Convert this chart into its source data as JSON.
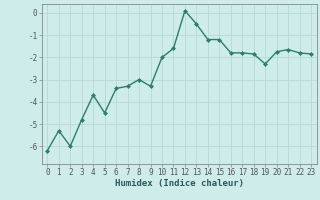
{
  "x": [
    0,
    1,
    2,
    3,
    4,
    5,
    6,
    7,
    8,
    9,
    10,
    11,
    12,
    13,
    14,
    15,
    16,
    17,
    18,
    19,
    20,
    21,
    22,
    23
  ],
  "y": [
    -6.2,
    -5.3,
    -6.0,
    -4.8,
    -3.7,
    -4.5,
    -3.4,
    -3.3,
    -3.0,
    -3.3,
    -2.0,
    -1.6,
    0.1,
    -0.5,
    -1.2,
    -1.2,
    -1.8,
    -1.8,
    -1.85,
    -2.3,
    -1.75,
    -1.65,
    -1.8,
    -1.85
  ],
  "line_color": "#2e7d6e",
  "marker": "D",
  "marker_size": 2.0,
  "bg_color": "#ceecea",
  "grid_color": "#b8d8d4",
  "xlabel": "Humidex (Indice chaleur)",
  "ylim": [
    -6.8,
    0.4
  ],
  "xlim": [
    -0.5,
    23.5
  ],
  "yticks": [
    0,
    -1,
    -2,
    -3,
    -4,
    -5,
    -6
  ],
  "xticks": [
    0,
    1,
    2,
    3,
    4,
    5,
    6,
    7,
    8,
    9,
    10,
    11,
    12,
    13,
    14,
    15,
    16,
    17,
    18,
    19,
    20,
    21,
    22,
    23
  ],
  "tick_fontsize": 5.5,
  "xlabel_fontsize": 6.5,
  "line_width": 1.0,
  "spine_color": "#888888",
  "tick_color": "#555555"
}
